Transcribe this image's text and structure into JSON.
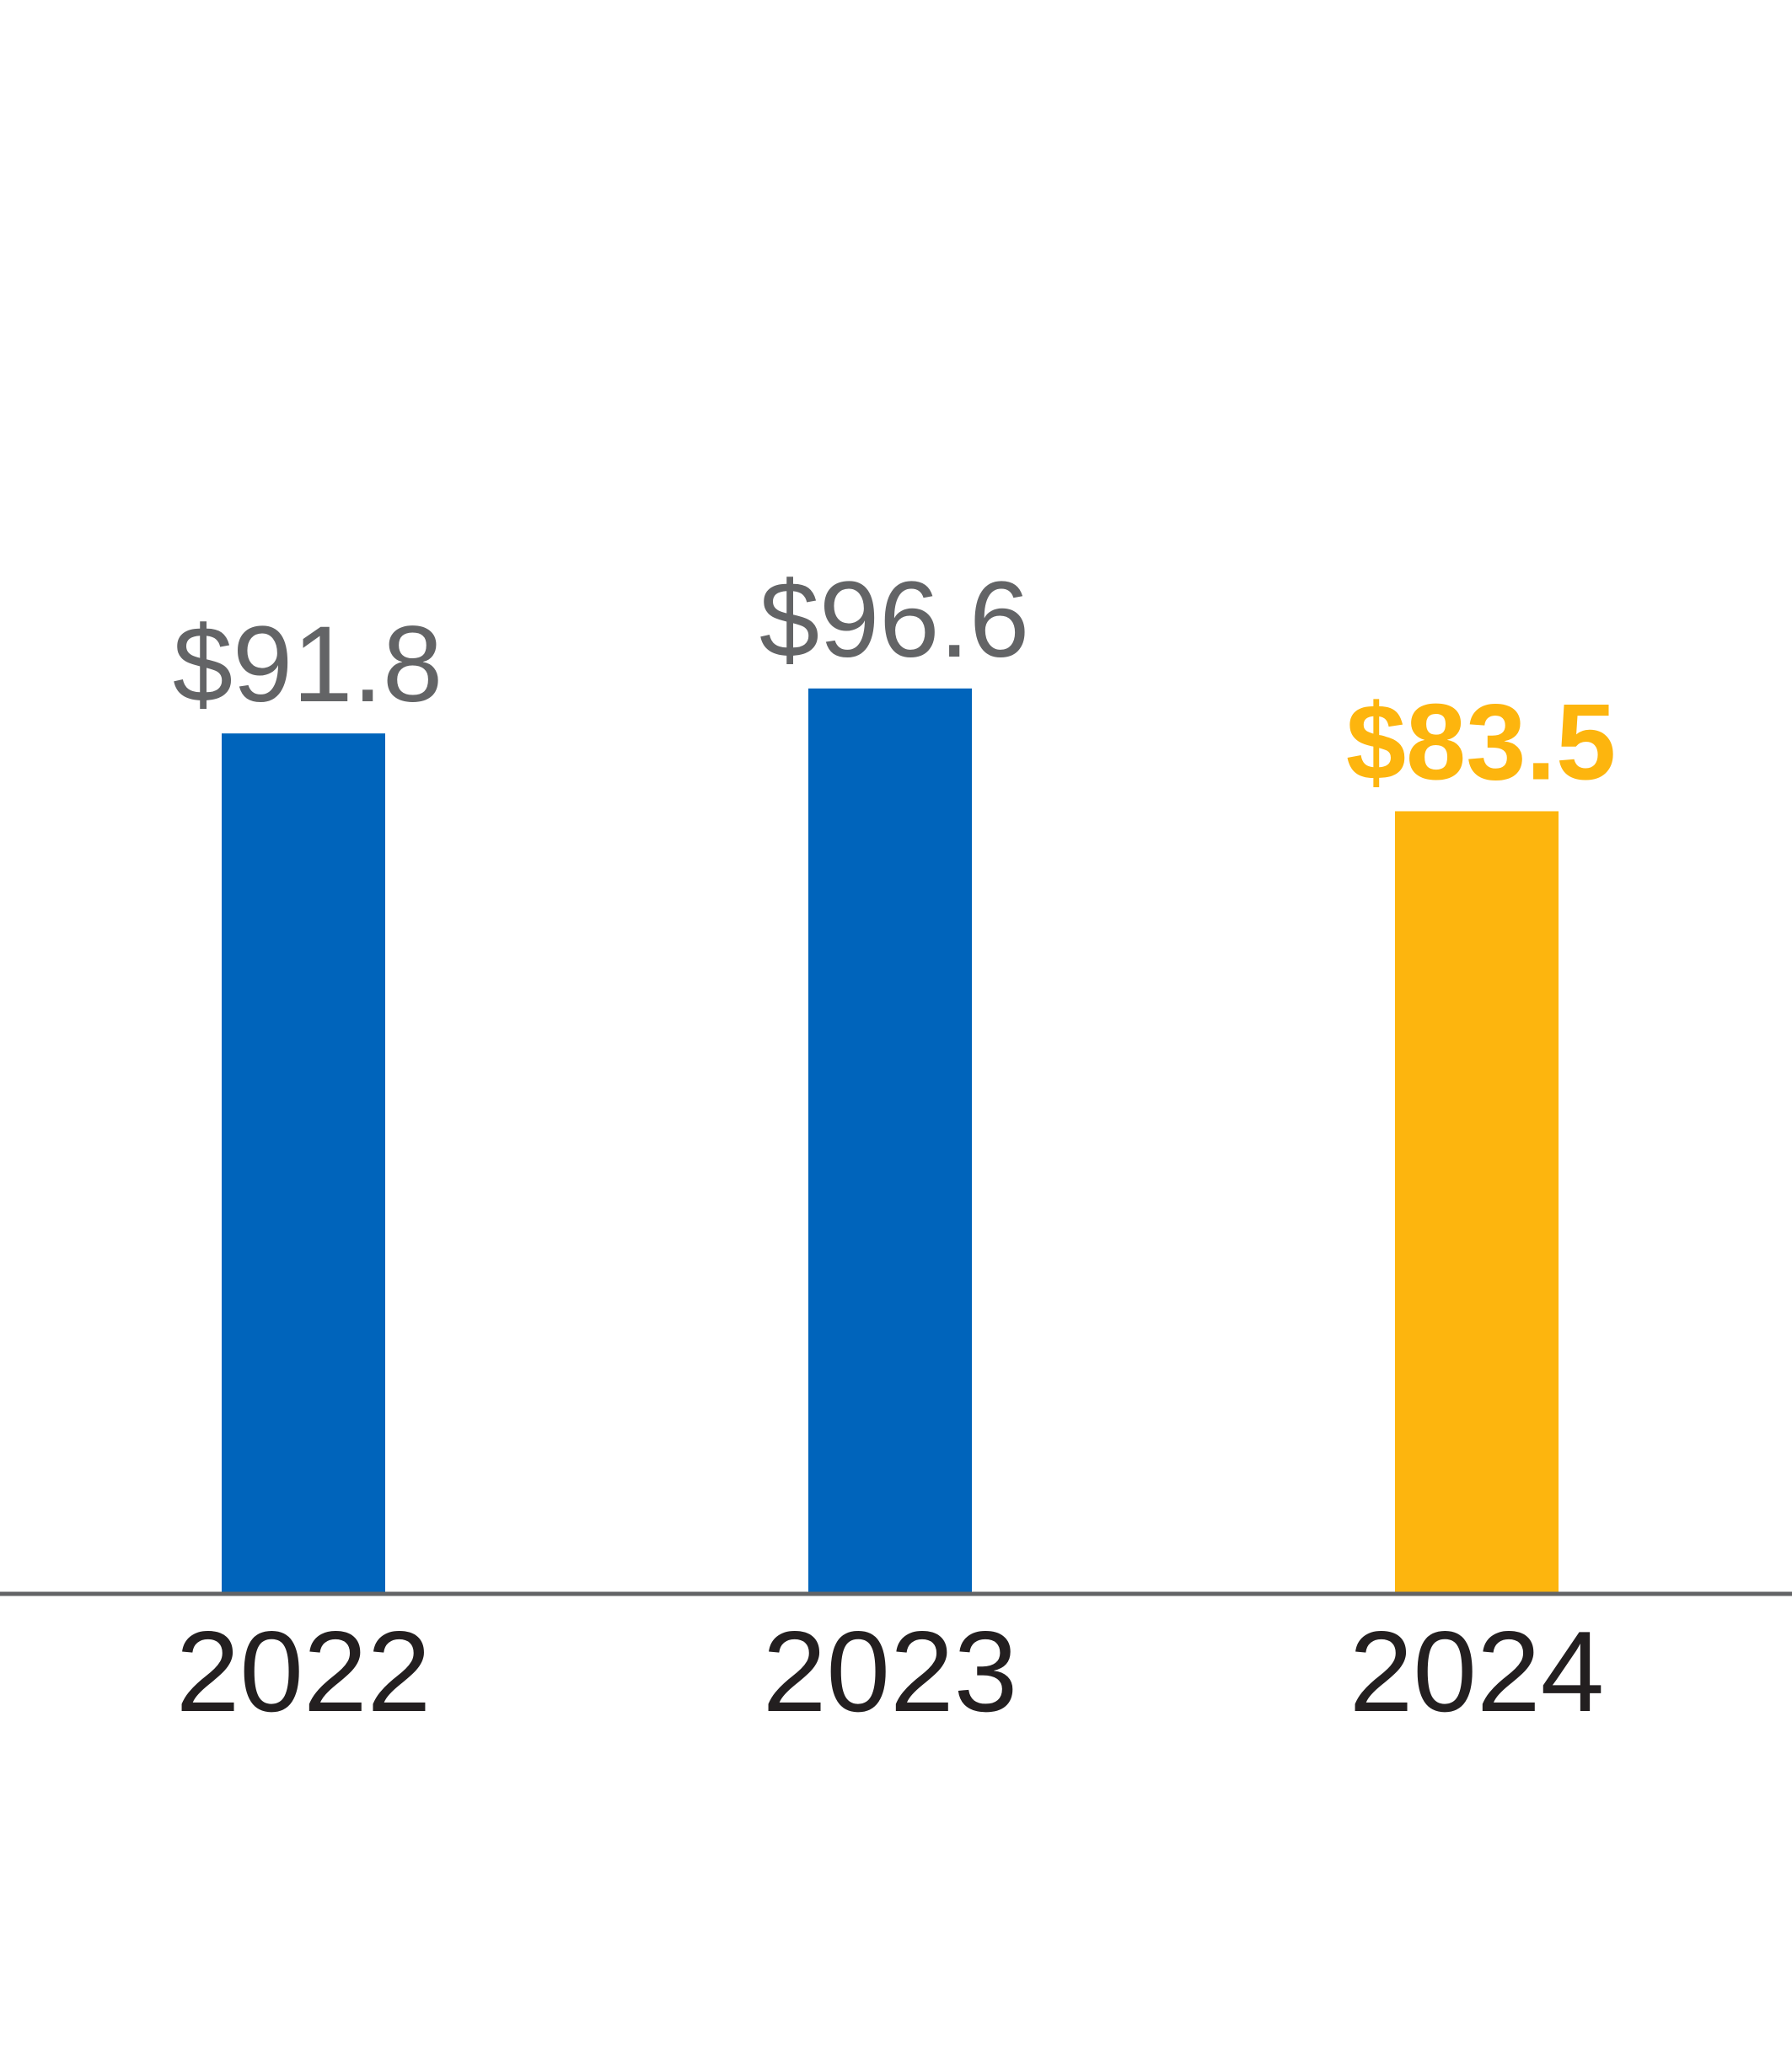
{
  "chart_data": {
    "type": "bar",
    "categories": [
      "2022",
      "2023",
      "2024"
    ],
    "values": [
      91.8,
      96.6,
      83.5
    ],
    "value_labels": [
      "$91.8",
      "$96.6",
      "$83.5"
    ],
    "highlight_category": "2024",
    "ylim": [
      0,
      180
    ],
    "grid": false,
    "legend": "none"
  },
  "colors": {
    "bar": "#0064bb",
    "bar_highlight": "#fdb50e",
    "value_label": "#636466",
    "value_label_highlight": "#fdb50e",
    "axis": "#636466",
    "tick_label": "#231f20"
  }
}
